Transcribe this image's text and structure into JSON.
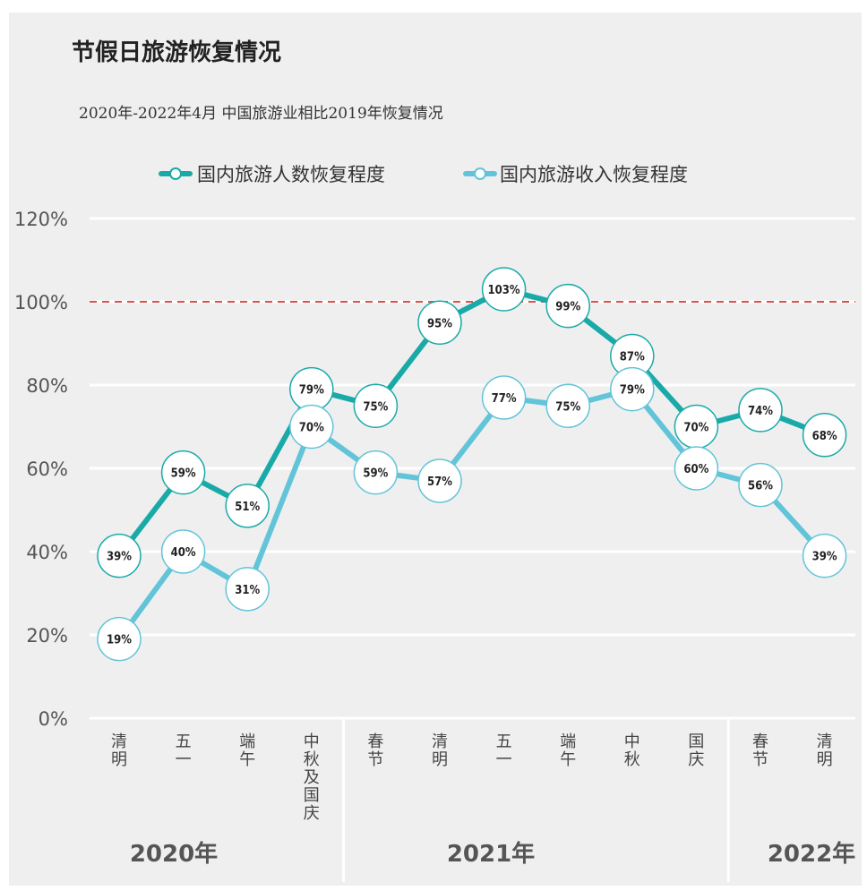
{
  "title": "节假日旅游恢复情况",
  "subtitle": "2020年-2022年4月 中国旅游业相比2019年恢复情况",
  "colors": {
    "series1": "#19aaa8",
    "series2": "#62c4d8",
    "reference": "#d9534f",
    "background": "#efefef"
  },
  "chart_data": {
    "type": "line",
    "categories": [
      "清明",
      "五一",
      "端午",
      "中秋及国庆",
      "春节",
      "清明",
      "五一",
      "端午",
      "中秋",
      "国庆",
      "春节",
      "清明"
    ],
    "groups": [
      {
        "label": "2020年",
        "count": 4
      },
      {
        "label": "2021年",
        "count": 6
      },
      {
        "label": "2022年",
        "count": 2
      }
    ],
    "series": [
      {
        "name": "国内旅游人数恢复程度",
        "values": [
          39,
          59,
          51,
          79,
          75,
          95,
          103,
          99,
          87,
          70,
          74,
          68
        ],
        "labels": [
          "39%",
          "59%",
          "51%",
          "79%",
          "75%",
          "95%",
          "103%",
          "99%",
          "87%",
          "70%",
          "74%",
          "68%"
        ]
      },
      {
        "name": "国内旅游收入恢复程度",
        "values": [
          19,
          40,
          31,
          70,
          59,
          57,
          77,
          75,
          79,
          60,
          56,
          39
        ],
        "labels": [
          "19%",
          "40%",
          "31%",
          "70%",
          "59%",
          "57%",
          "77%",
          "75%",
          "79%",
          "60%",
          "56%",
          "39%"
        ]
      }
    ],
    "y_ticks": [
      "0%",
      "20%",
      "40%",
      "60%",
      "80%",
      "100%",
      "120%"
    ],
    "ylim": [
      0,
      120
    ],
    "reference_line": 100,
    "legend_position": "top",
    "grid": true
  }
}
